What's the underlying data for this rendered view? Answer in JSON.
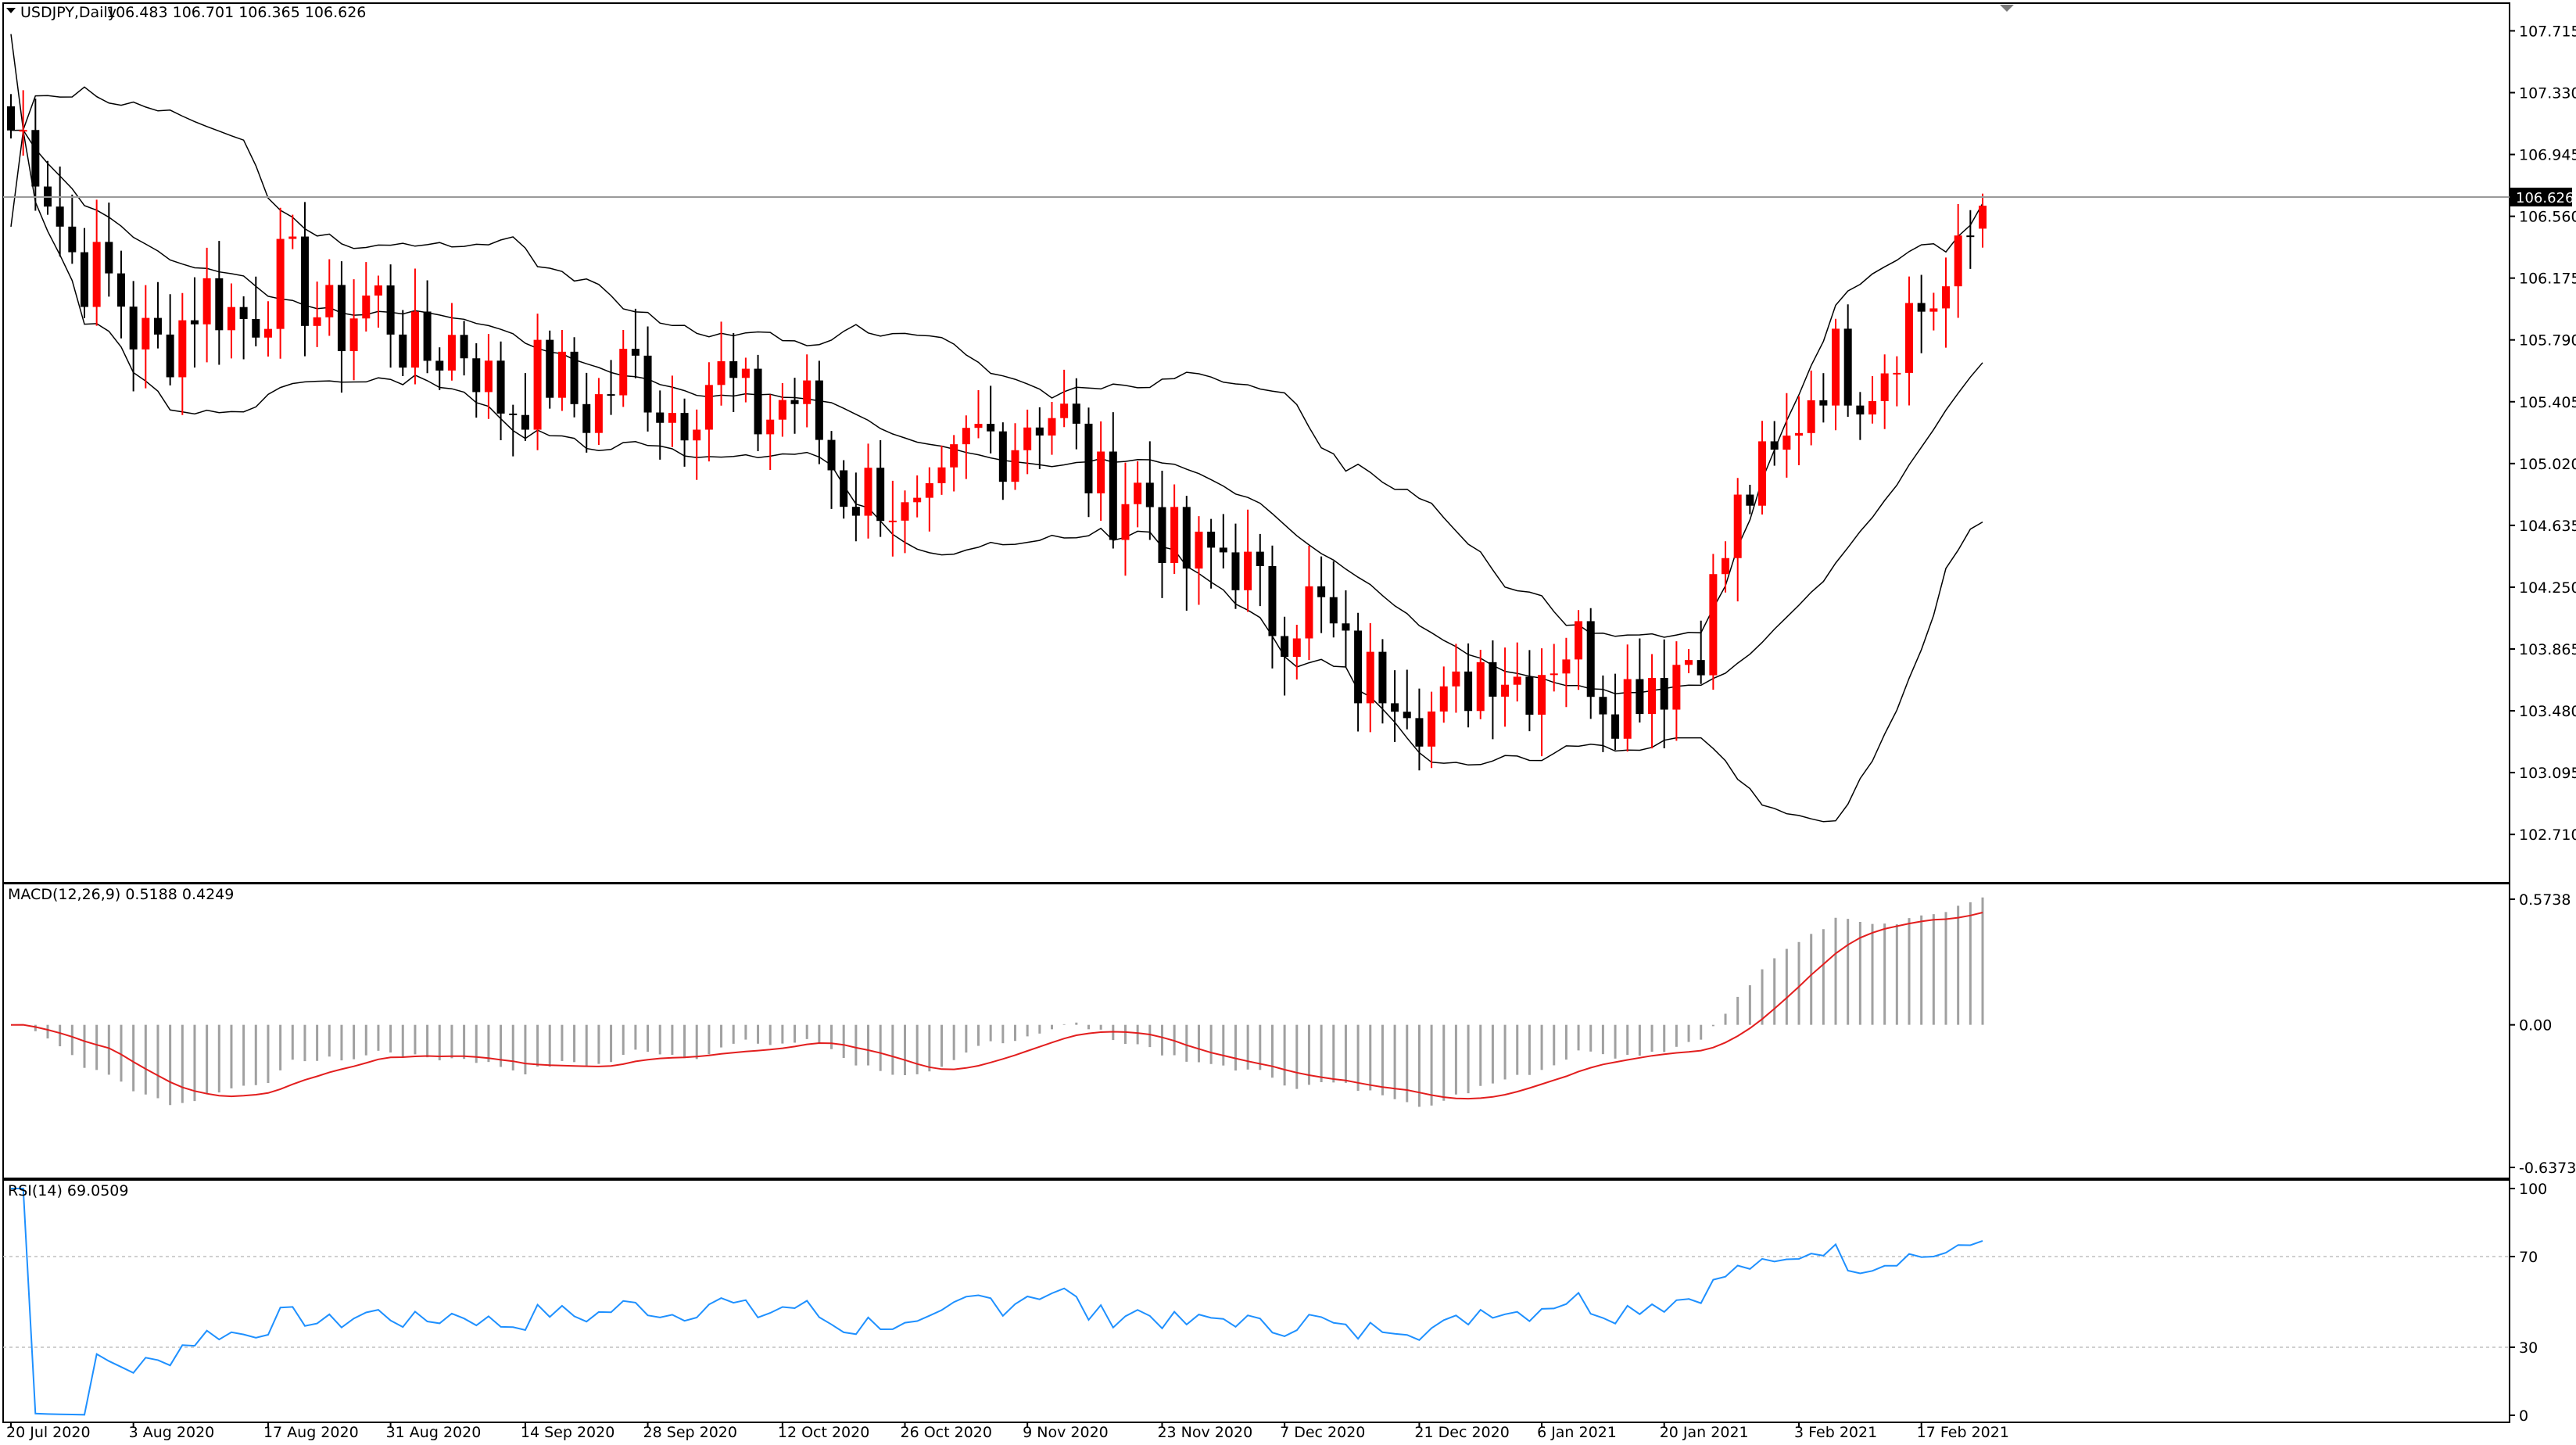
{
  "main_header": {
    "symbol": "USDJPY,Daily",
    "ohlc": "106.483 106.701 106.365 106.626"
  },
  "macd_header": "MACD(12,26,9) 0.5188 0.4249",
  "rsi_header": "RSI(14) 69.0509",
  "price_axis": [
    "107.715",
    "107.330",
    "106.945",
    "106.560",
    "106.175",
    "105.790",
    "105.405",
    "105.020",
    "104.635",
    "104.250",
    "103.865",
    "103.480",
    "103.095",
    "102.710"
  ],
  "current_price": "106.626",
  "macd_axis": [
    "0.5738",
    "0.00",
    "-0.6373"
  ],
  "rsi_axis": [
    "100",
    "70",
    "30",
    "0"
  ],
  "date_axis": [
    "20 Jul 2020",
    "3 Aug 2020",
    "17 Aug 2020",
    "31 Aug 2020",
    "14 Sep 2020",
    "28 Sep 2020",
    "12 Oct 2020",
    "26 Oct 2020",
    "9 Nov 2020",
    "23 Nov 2020",
    "7 Dec 2020",
    "21 Dec 2020",
    "6 Jan 2021",
    "20 Jan 2021",
    "3 Feb 2021",
    "17 Feb 2021"
  ],
  "colors": {
    "bull": "#ff0000",
    "bear": "#000000",
    "signal": "#e21e1e",
    "histogram": "#a0a0a0",
    "rsi": "#1e90ff",
    "bands": "#000000"
  },
  "chart_data": [
    {
      "type": "candlestick",
      "title": "USDJPY,Daily",
      "ylim": [
        102.55,
        107.8
      ],
      "anchors": [
        {
          "date": "20 Jul 2020",
          "close": 107.1
        },
        {
          "date": "3 Aug 2020",
          "close": 105.8
        },
        {
          "date": "17 Aug 2020",
          "close": 106.1
        },
        {
          "date": "31 Aug 2020",
          "close": 105.9
        },
        {
          "date": "14 Sep 2020",
          "close": 105.45
        },
        {
          "date": "28 Sep 2020",
          "close": 105.5
        },
        {
          "date": "12 Oct 2020",
          "close": 105.4
        },
        {
          "date": "26 Oct 2020",
          "close": 104.6
        },
        {
          "date": "9 Nov 2020",
          "close": 105.4
        },
        {
          "date": "23 Nov 2020",
          "close": 104.6
        },
        {
          "date": "7 Dec 2020",
          "close": 104.15
        },
        {
          "date": "21 Dec 2020",
          "close": 103.5
        },
        {
          "date": "6 Jan 2021",
          "close": 103.85
        },
        {
          "date": "20 Jan 2021",
          "close": 103.6
        },
        {
          "date": "3 Feb 2021",
          "close": 105.4
        },
        {
          "date": "17 Feb 2021",
          "close": 105.9
        }
      ],
      "last_bar": {
        "open": 106.483,
        "high": 106.701,
        "low": 106.365,
        "close": 106.626
      },
      "bollinger_bands": true
    },
    {
      "type": "bar",
      "title": "MACD(12,26,9)",
      "macd": 0.5188,
      "signal": 0.4249,
      "ylim": [
        -0.6373,
        0.5738
      ]
    },
    {
      "type": "line",
      "title": "RSI(14)",
      "value": 69.0509,
      "levels": [
        70,
        30
      ],
      "ylim": [
        0,
        100
      ]
    }
  ]
}
